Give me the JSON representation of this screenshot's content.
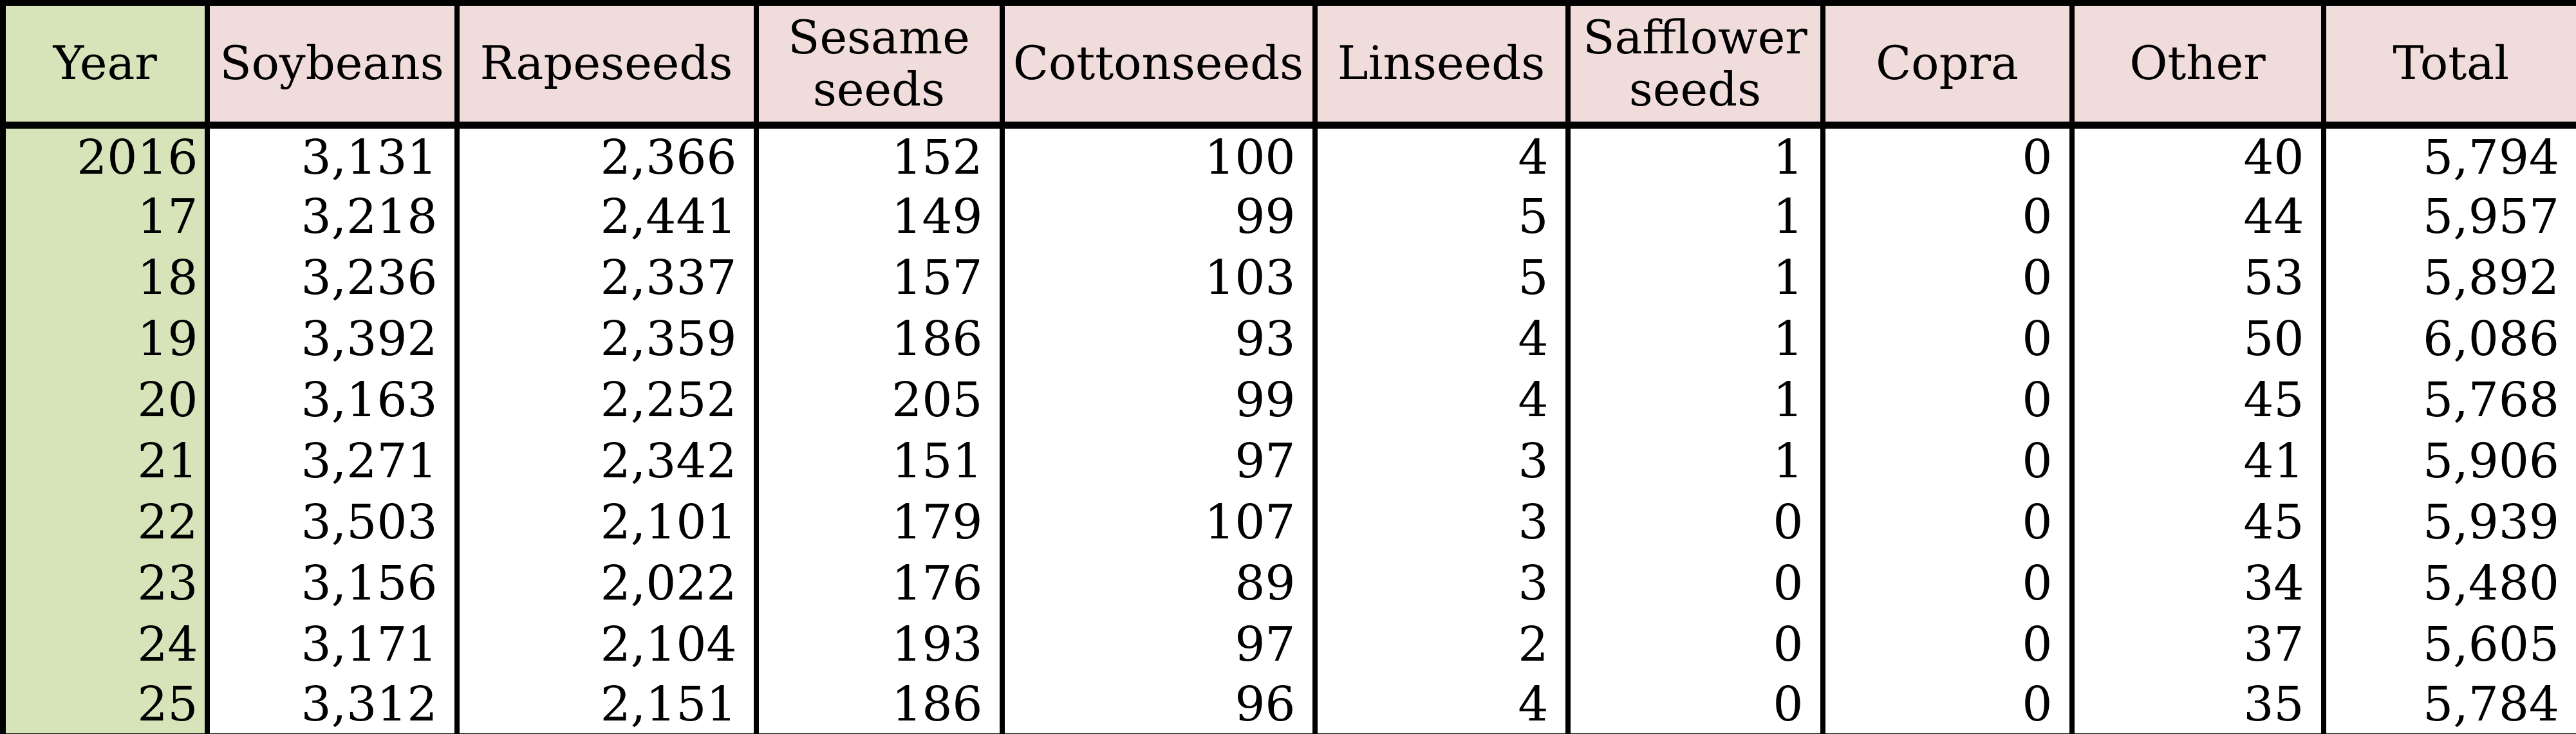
{
  "table": {
    "columns": [
      {
        "key": "year",
        "label": "Year"
      },
      {
        "key": "soybeans",
        "label": "Soybeans"
      },
      {
        "key": "rapeseeds",
        "label": "Rapeseeds"
      },
      {
        "key": "sesame_seeds",
        "label": "Sesame seeds"
      },
      {
        "key": "cottonseeds",
        "label": "Cottonseeds"
      },
      {
        "key": "linseeds",
        "label": "Linseeds"
      },
      {
        "key": "safflower_seeds",
        "label": "Safflower seeds"
      },
      {
        "key": "copra",
        "label": "Copra"
      },
      {
        "key": "other",
        "label": "Other"
      },
      {
        "key": "total",
        "label": "Total"
      }
    ],
    "rows": [
      [
        "2016",
        "3,131",
        "2,366",
        "152",
        "100",
        "4",
        "1",
        "0",
        "40",
        "5,794"
      ],
      [
        "17",
        "3,218",
        "2,441",
        "149",
        "99",
        "5",
        "1",
        "0",
        "44",
        "5,957"
      ],
      [
        "18",
        "3,236",
        "2,337",
        "157",
        "103",
        "5",
        "1",
        "0",
        "53",
        "5,892"
      ],
      [
        "19",
        "3,392",
        "2,359",
        "186",
        "93",
        "4",
        "1",
        "0",
        "50",
        "6,086"
      ],
      [
        "20",
        "3,163",
        "2,252",
        "205",
        "99",
        "4",
        "1",
        "0",
        "45",
        "5,768"
      ],
      [
        "21",
        "3,271",
        "2,342",
        "151",
        "97",
        "3",
        "1",
        "0",
        "41",
        "5,906"
      ],
      [
        "22",
        "3,503",
        "2,101",
        "179",
        "107",
        "3",
        "0",
        "0",
        "45",
        "5,939"
      ],
      [
        "23",
        "3,156",
        "2,022",
        "176",
        "89",
        "3",
        "0",
        "0",
        "34",
        "5,480"
      ],
      [
        "24",
        "3,171",
        "2,104",
        "193",
        "97",
        "2",
        "0",
        "0",
        "37",
        "5,605"
      ],
      [
        "25",
        "3,312",
        "2,151",
        "186",
        "96",
        "4",
        "0",
        "0",
        "35",
        "5,784"
      ]
    ]
  },
  "colors": {
    "header_bg": "#f0dcdb",
    "year_col_bg": "#d7e3b9",
    "cell_bg": "#ffffff",
    "border": "#000000",
    "text": "#000000"
  },
  "chart_data": {
    "type": "table",
    "title": "",
    "columns": [
      "Year",
      "Soybeans",
      "Rapeseeds",
      "Sesame seeds",
      "Cottonseeds",
      "Linseeds",
      "Safflower seeds",
      "Copra",
      "Other",
      "Total"
    ],
    "categories": [
      "2016",
      "17",
      "18",
      "19",
      "20",
      "21",
      "22",
      "23",
      "24",
      "25"
    ],
    "series": [
      {
        "name": "Soybeans",
        "values": [
          3131,
          3218,
          3236,
          3392,
          3163,
          3271,
          3503,
          3156,
          3171,
          3312
        ]
      },
      {
        "name": "Rapeseeds",
        "values": [
          2366,
          2441,
          2337,
          2359,
          2252,
          2342,
          2101,
          2022,
          2104,
          2151
        ]
      },
      {
        "name": "Sesame seeds",
        "values": [
          152,
          149,
          157,
          186,
          205,
          151,
          179,
          176,
          193,
          186
        ]
      },
      {
        "name": "Cottonseeds",
        "values": [
          100,
          99,
          103,
          93,
          99,
          97,
          107,
          89,
          97,
          96
        ]
      },
      {
        "name": "Linseeds",
        "values": [
          4,
          5,
          5,
          4,
          4,
          3,
          3,
          3,
          2,
          4
        ]
      },
      {
        "name": "Safflower seeds",
        "values": [
          1,
          1,
          1,
          1,
          1,
          1,
          0,
          0,
          0,
          0
        ]
      },
      {
        "name": "Copra",
        "values": [
          0,
          0,
          0,
          0,
          0,
          0,
          0,
          0,
          0,
          0
        ]
      },
      {
        "name": "Other",
        "values": [
          40,
          44,
          53,
          50,
          45,
          41,
          45,
          34,
          37,
          35
        ]
      },
      {
        "name": "Total",
        "values": [
          5794,
          5957,
          5892,
          6086,
          5768,
          5906,
          5939,
          5480,
          5605,
          5784
        ]
      }
    ]
  }
}
